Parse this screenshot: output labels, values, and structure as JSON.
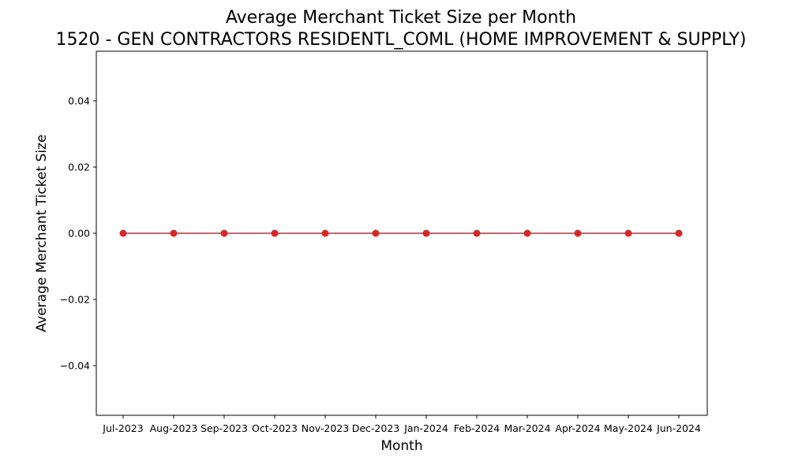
{
  "chart_data": {
    "type": "line",
    "title": "Average Merchant Ticket Size per Month",
    "subtitle": "1520 - GEN CONTRACTORS RESIDENTL_COML (HOME IMPROVEMENT & SUPPLY)",
    "xlabel": "Month",
    "ylabel": "Average Merchant Ticket Size",
    "categories": [
      "Jul-2023",
      "Aug-2023",
      "Sep-2023",
      "Oct-2023",
      "Nov-2023",
      "Dec-2023",
      "Jan-2024",
      "Feb-2024",
      "Mar-2024",
      "Apr-2024",
      "May-2024",
      "Jun-2024"
    ],
    "series": [
      {
        "values": [
          0,
          0,
          0,
          0,
          0,
          0,
          0,
          0,
          0,
          0,
          0,
          0
        ],
        "color": "#d62728",
        "marker": "circle"
      }
    ],
    "ylim": [
      -0.055,
      0.055
    ],
    "yticks": [
      -0.04,
      -0.02,
      0.0,
      0.02,
      0.04
    ],
    "ytick_labels": [
      "−0.04",
      "−0.02",
      "0.00",
      "0.02",
      "0.04"
    ],
    "grid": false,
    "legend": false
  }
}
